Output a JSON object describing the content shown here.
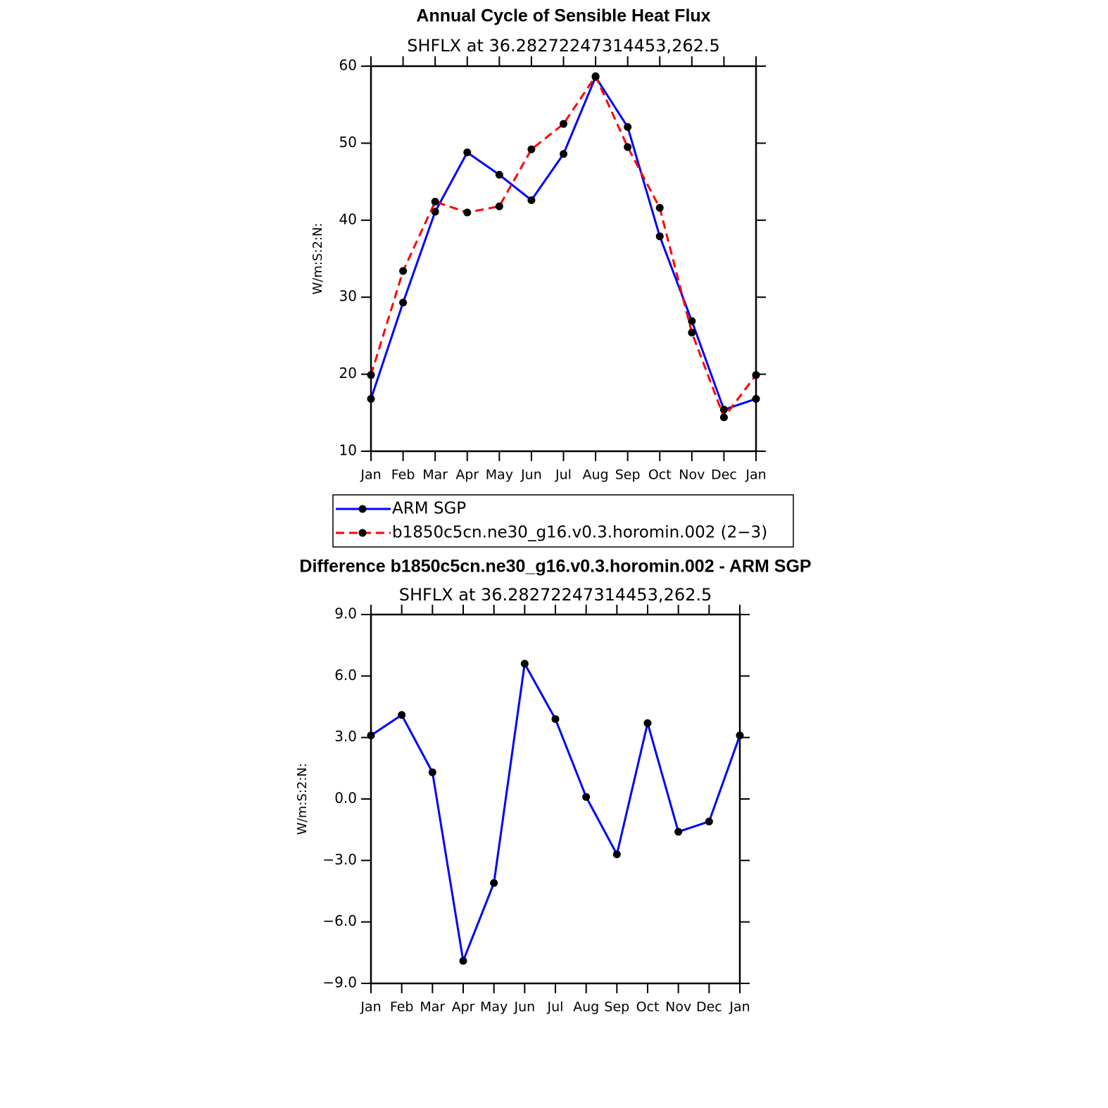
{
  "chart_data": [
    {
      "type": "line",
      "title": "Annual Cycle of Sensible Heat Flux",
      "subtitle": "SHFLX  at  36.28272247314453,262.5",
      "y_label": "W/m:S:2:N:",
      "categories": [
        "Jan",
        "Feb",
        "Mar",
        "Apr",
        "May",
        "Jun",
        "Jul",
        "Aug",
        "Sep",
        "Oct",
        "Nov",
        "Dec",
        "Jan"
      ],
      "series": [
        {
          "name": "ARM  SGP",
          "color": "#0000ff",
          "linestyle": "solid",
          "values": [
            16.8,
            29.3,
            41.1,
            48.8,
            45.9,
            42.6,
            48.6,
            58.6,
            52.1,
            37.9,
            26.9,
            15.4,
            16.8
          ]
        },
        {
          "name": "b1850c5cn.ne30_g16.v0.3.horomin.002  (2−3)",
          "color": "#ff0000",
          "linestyle": "dashed",
          "values": [
            19.9,
            33.4,
            42.4,
            41.0,
            41.8,
            49.2,
            52.5,
            58.7,
            49.5,
            41.6,
            25.4,
            14.4,
            19.9
          ]
        }
      ],
      "ylim": [
        10,
        60
      ],
      "yticks": [
        10,
        20,
        30,
        40,
        50,
        60
      ],
      "legend": "bottom"
    },
    {
      "type": "line",
      "title": "Difference b1850c5cn.ne30_g16.v0.3.horomin.002 - ARM SGP",
      "subtitle": "SHFLX  at  36.28272247314453,262.5",
      "y_label": "W/m:S:2:N:",
      "categories": [
        "Jan",
        "Feb",
        "Mar",
        "Apr",
        "May",
        "Jun",
        "Jul",
        "Aug",
        "Sep",
        "Oct",
        "Nov",
        "Dec",
        "Jan"
      ],
      "series": [
        {
          "color": "#0000ff",
          "linestyle": "solid",
          "values": [
            3.1,
            4.1,
            1.3,
            -7.9,
            -4.1,
            6.6,
            3.9,
            0.1,
            -2.7,
            3.7,
            -1.6,
            -1.1,
            3.1
          ]
        }
      ],
      "ylim": [
        -9,
        9
      ],
      "yticks": [
        {
          "value": -9,
          "label": "−9.0"
        },
        {
          "value": -6,
          "label": "−6.0"
        },
        {
          "value": -3,
          "label": "−3.0"
        },
        {
          "value": 0,
          "label": "0.0"
        },
        {
          "value": 3,
          "label": "3.0"
        },
        {
          "value": 6,
          "label": "6.0"
        },
        {
          "value": 9,
          "label": "9.0"
        }
      ]
    }
  ]
}
